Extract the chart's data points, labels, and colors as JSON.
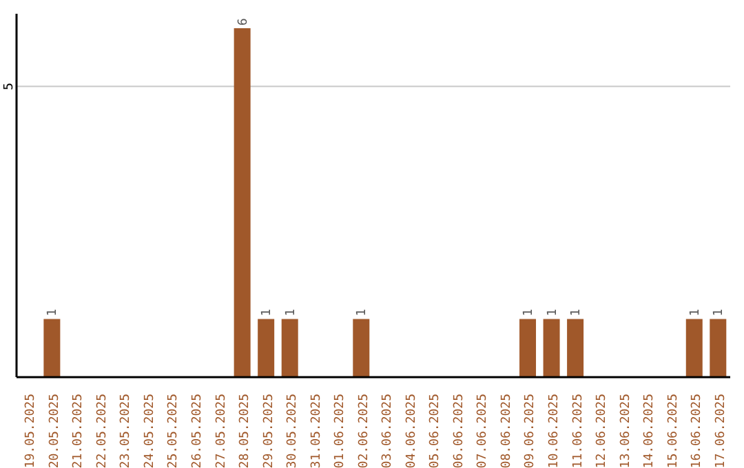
{
  "chart_data": {
    "type": "bar",
    "categories": [
      "19.05.2025",
      "20.05.2025",
      "21.05.2025",
      "22.05.2025",
      "23.05.2025",
      "24.05.2025",
      "25.05.2025",
      "26.05.2025",
      "27.05.2025",
      "28.05.2025",
      "29.05.2025",
      "30.05.2025",
      "31.05.2025",
      "01.06.2025",
      "02.06.2025",
      "03.06.2025",
      "04.06.2025",
      "05.06.2025",
      "06.06.2025",
      "07.06.2025",
      "08.06.2025",
      "09.06.2025",
      "10.06.2025",
      "11.06.2025",
      "12.06.2025",
      "13.06.2025",
      "14.06.2025",
      "15.06.2025",
      "16.06.2025",
      "17.06.2025"
    ],
    "values": [
      0,
      1,
      0,
      0,
      0,
      0,
      0,
      0,
      0,
      6,
      1,
      1,
      0,
      0,
      1,
      0,
      0,
      0,
      0,
      0,
      0,
      1,
      1,
      1,
      0,
      0,
      0,
      0,
      1,
      1
    ],
    "value_labels": [
      null,
      "1",
      null,
      null,
      null,
      null,
      null,
      null,
      null,
      "6",
      "1",
      "1",
      null,
      null,
      "1",
      null,
      null,
      null,
      null,
      null,
      null,
      "1",
      "1",
      "1",
      null,
      null,
      null,
      null,
      "1",
      "1"
    ],
    "color": "#a0582a",
    "ylim": [
      0,
      6.25
    ],
    "yticks": [
      5
    ],
    "grid": "y"
  }
}
